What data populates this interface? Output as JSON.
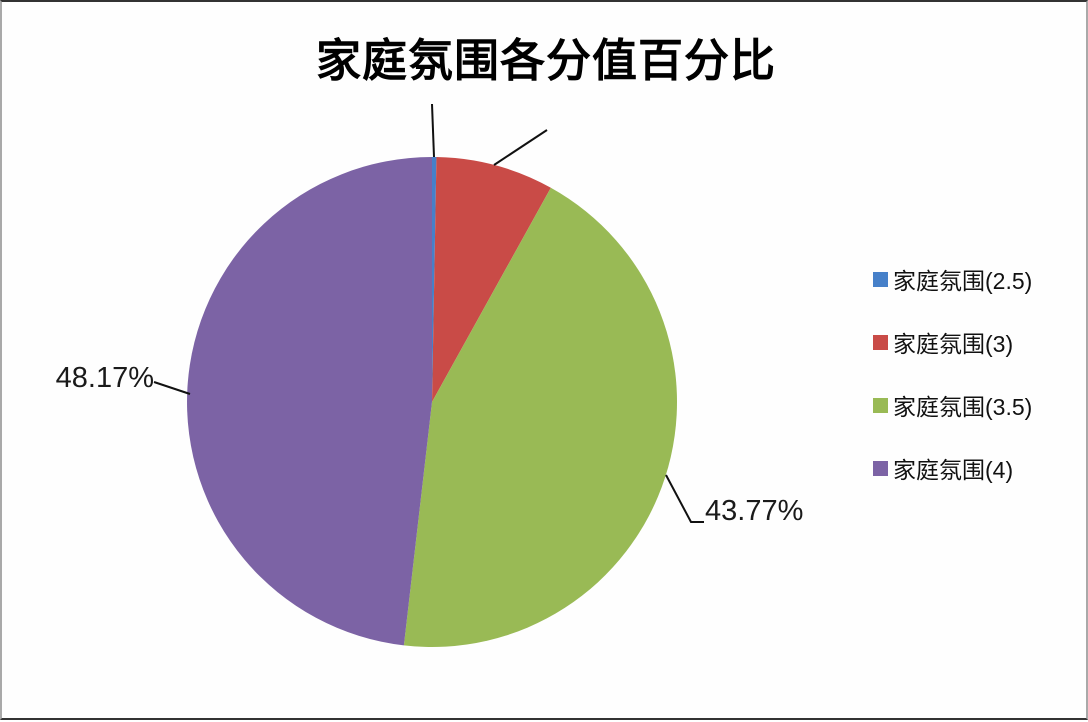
{
  "chart_data": {
    "type": "pie",
    "title": "家庭氛围各分值百分比",
    "categories": [
      "家庭氛围(2.5)",
      "家庭氛围(3)",
      "家庭氛围(3.5)",
      "家庭氛围(4)"
    ],
    "values": [
      0.29,
      7.77,
      43.77,
      48.17
    ],
    "unit": "%",
    "colors": [
      "#4680C9",
      "#C94B47",
      "#99BA55",
      "#7C63A5"
    ],
    "data_labels": {
      "slice_3_5": "43.77%",
      "slice_4": "48.17%"
    },
    "legend_position": "right",
    "start_angle_deg": 0,
    "direction": "clockwise"
  },
  "legend": {
    "items": [
      {
        "label": "家庭氛围(2.5)",
        "color": "#4680C9"
      },
      {
        "label": "家庭氛围(3)",
        "color": "#C94B47"
      },
      {
        "label": "家庭氛围(3.5)",
        "color": "#99BA55"
      },
      {
        "label": "家庭氛围(4)",
        "color": "#7C63A5"
      }
    ]
  }
}
